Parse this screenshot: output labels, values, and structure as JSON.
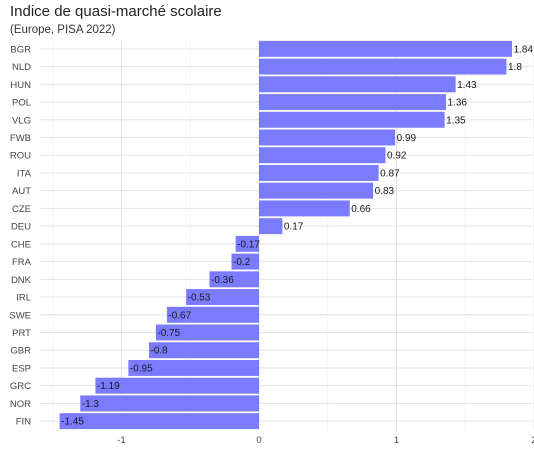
{
  "chart_data": {
    "type": "bar",
    "orientation": "horizontal",
    "title": "Indice de quasi-marché scolaire",
    "subtitle": "(Europe, PISA 2022)",
    "xlabel": "",
    "ylabel": "",
    "categories": [
      "BGR",
      "NLD",
      "HUN",
      "POL",
      "VLG",
      "FWB",
      "ROU",
      "ITA",
      "AUT",
      "CZE",
      "DEU",
      "CHE",
      "FRA",
      "DNK",
      "IRL",
      "SWE",
      "PRT",
      "GBR",
      "ESP",
      "GRC",
      "NOR",
      "FIN"
    ],
    "values": [
      1.84,
      1.8,
      1.43,
      1.36,
      1.35,
      0.99,
      0.92,
      0.87,
      0.83,
      0.66,
      0.17,
      -0.17,
      -0.2,
      -0.36,
      -0.53,
      -0.67,
      -0.75,
      -0.8,
      -0.95,
      -1.19,
      -1.3,
      -1.45
    ],
    "value_labels": [
      "1.84",
      "1.8",
      "1.43",
      "1.36",
      "1.35",
      "0.99",
      "0.92",
      "0.87",
      "0.83",
      "0.66",
      "0.17",
      "-0.17",
      "-0.2",
      "-0.36",
      "-0.53",
      "-0.67",
      "-0.75",
      "-0.8",
      "-0.95",
      "-1.19",
      "-1.3",
      "-1.45"
    ],
    "xlim": [
      -1.6,
      2
    ],
    "xticks": [
      -1,
      0,
      1,
      2
    ],
    "xtick_labels": [
      "-1",
      "0",
      "1",
      "2"
    ],
    "grid": true,
    "legend": "none",
    "bar_color": "#7b7bff"
  }
}
